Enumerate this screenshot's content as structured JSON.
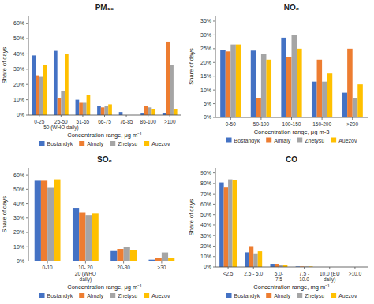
{
  "chart_data": [
    {
      "type": "bar",
      "title": "PM₁₀",
      "categories": [
        "0-25",
        "25-50\n50 (WHO daily)",
        "51-65",
        "66-75",
        "76-85",
        "86-100",
        ">100"
      ],
      "xlabel": "Concentration range, μg m⁻¹",
      "ylabel": "Share of days",
      "ylim": [
        0,
        0.65
      ],
      "yticks": [
        {
          "value": 0.0,
          "label": "0%"
        },
        {
          "value": 0.1,
          "label": "10%"
        },
        {
          "value": 0.2,
          "label": "20%"
        },
        {
          "value": 0.3,
          "label": "30%"
        },
        {
          "value": 0.4,
          "label": "40%"
        },
        {
          "value": 0.5,
          "label": "50%"
        },
        {
          "value": 0.6,
          "label": "60%"
        }
      ],
      "grid": false,
      "legend": "bottom",
      "series": [
        {
          "name": "Bostandyk",
          "color": "#4472C4",
          "values": [
            0.39,
            0.42,
            0.1,
            0.06,
            0.02,
            0.01,
            0.015
          ]
        },
        {
          "name": "Almaly",
          "color": "#ED7D31",
          "values": [
            0.26,
            0.11,
            0.08,
            0.05,
            0.0,
            0.06,
            0.48
          ]
        },
        {
          "name": "Zhetysu",
          "color": "#A5A5A5",
          "values": [
            0.25,
            0.16,
            0.08,
            0.06,
            0.0,
            0.05,
            0.33
          ]
        },
        {
          "name": "Auezov",
          "color": "#FFC000",
          "values": [
            0.33,
            0.4,
            0.13,
            0.07,
            0.0,
            0.04,
            0.04
          ]
        }
      ]
    },
    {
      "type": "bar",
      "title": "NO₂",
      "categories": [
        "0-50",
        "50-100",
        "100-150",
        "150-200",
        ">200"
      ],
      "xlabel": "Concentration range, μg m-3",
      "ylabel": "Share of days",
      "ylim": [
        0,
        0.37
      ],
      "yticks": [
        {
          "value": 0.0,
          "label": "0%"
        },
        {
          "value": 0.05,
          "label": "5%"
        },
        {
          "value": 0.1,
          "label": "10%"
        },
        {
          "value": 0.15,
          "label": "15%"
        },
        {
          "value": 0.2,
          "label": "20%"
        },
        {
          "value": 0.25,
          "label": "25%"
        },
        {
          "value": 0.3,
          "label": "30%"
        },
        {
          "value": 0.35,
          "label": "35%"
        }
      ],
      "grid": false,
      "legend": "bottom",
      "series": [
        {
          "name": "Bostandyk",
          "color": "#4472C4",
          "values": [
            0.245,
            0.243,
            0.29,
            0.13,
            0.09
          ]
        },
        {
          "name": "Almaly",
          "color": "#ED7D31",
          "values": [
            0.24,
            0.07,
            0.22,
            0.21,
            0.25
          ]
        },
        {
          "name": "Zhetysu",
          "color": "#A5A5A5",
          "values": [
            0.265,
            0.23,
            0.3,
            0.13,
            0.07
          ]
        },
        {
          "name": "Auezov",
          "color": "#FFC000",
          "values": [
            0.265,
            0.21,
            0.25,
            0.16,
            0.12
          ]
        }
      ]
    },
    {
      "type": "bar",
      "title": "SO₂",
      "categories": [
        "0-10",
        "10- 20\n20 (WHO\ndaily)",
        "20-30",
        ">30"
      ],
      "xlabel": "Concentration range, μg m⁻¹",
      "ylabel": "Share of days",
      "ylim": [
        0,
        0.65
      ],
      "yticks": [
        {
          "value": 0.0,
          "label": "0%"
        },
        {
          "value": 0.1,
          "label": "10%"
        },
        {
          "value": 0.2,
          "label": "20%"
        },
        {
          "value": 0.3,
          "label": "30%"
        },
        {
          "value": 0.4,
          "label": "40%"
        },
        {
          "value": 0.5,
          "label": "50%"
        },
        {
          "value": 0.6,
          "label": "60%"
        }
      ],
      "grid": false,
      "legend": "bottom",
      "series": [
        {
          "name": "Bostandyk",
          "color": "#4472C4",
          "values": [
            0.56,
            0.37,
            0.07,
            0.01
          ]
        },
        {
          "name": "Almaly",
          "color": "#ED7D31",
          "values": [
            0.56,
            0.34,
            0.085,
            0.02
          ]
        },
        {
          "name": "Zhetysu",
          "color": "#A5A5A5",
          "values": [
            0.51,
            0.32,
            0.1,
            0.06
          ]
        },
        {
          "name": "Auezov",
          "color": "#FFC000",
          "values": [
            0.57,
            0.33,
            0.075,
            0.02
          ]
        }
      ]
    },
    {
      "type": "bar",
      "title": "CO",
      "categories": [
        "<2.5",
        "2.5 - 5.0",
        "5.0-\n7.5",
        "7.5 -\n10.0",
        "10.0 (EU\ndaily)",
        ">10.0"
      ],
      "xlabel": "Concentration range, mg m⁻¹",
      "ylabel": "Share of days",
      "ylim": [
        0,
        0.95
      ],
      "yticks": [
        {
          "value": 0.0,
          "label": "0%"
        },
        {
          "value": 0.1,
          "label": "10%"
        },
        {
          "value": 0.2,
          "label": "20%"
        },
        {
          "value": 0.3,
          "label": "30%"
        },
        {
          "value": 0.4,
          "label": "40%"
        },
        {
          "value": 0.5,
          "label": "50%"
        },
        {
          "value": 0.6,
          "label": "60%"
        },
        {
          "value": 0.7,
          "label": "70%"
        },
        {
          "value": 0.8,
          "label": "80%"
        },
        {
          "value": 0.9,
          "label": "90%"
        }
      ],
      "grid": false,
      "legend": "bottom",
      "series": [
        {
          "name": "Bostandyk",
          "color": "#4472C4",
          "values": [
            0.81,
            0.14,
            0.03,
            0.005,
            0.0,
            0.0
          ]
        },
        {
          "name": "Almaly",
          "color": "#ED7D31",
          "values": [
            0.76,
            0.2,
            0.03,
            0.005,
            0.0,
            0.0
          ]
        },
        {
          "name": "Zhetysu",
          "color": "#A5A5A5",
          "values": [
            0.84,
            0.13,
            0.02,
            0.005,
            0.0,
            0.0
          ]
        },
        {
          "name": "Auezov",
          "color": "#FFC000",
          "values": [
            0.83,
            0.15,
            0.02,
            0.005,
            0.0,
            0.0
          ]
        }
      ]
    }
  ]
}
